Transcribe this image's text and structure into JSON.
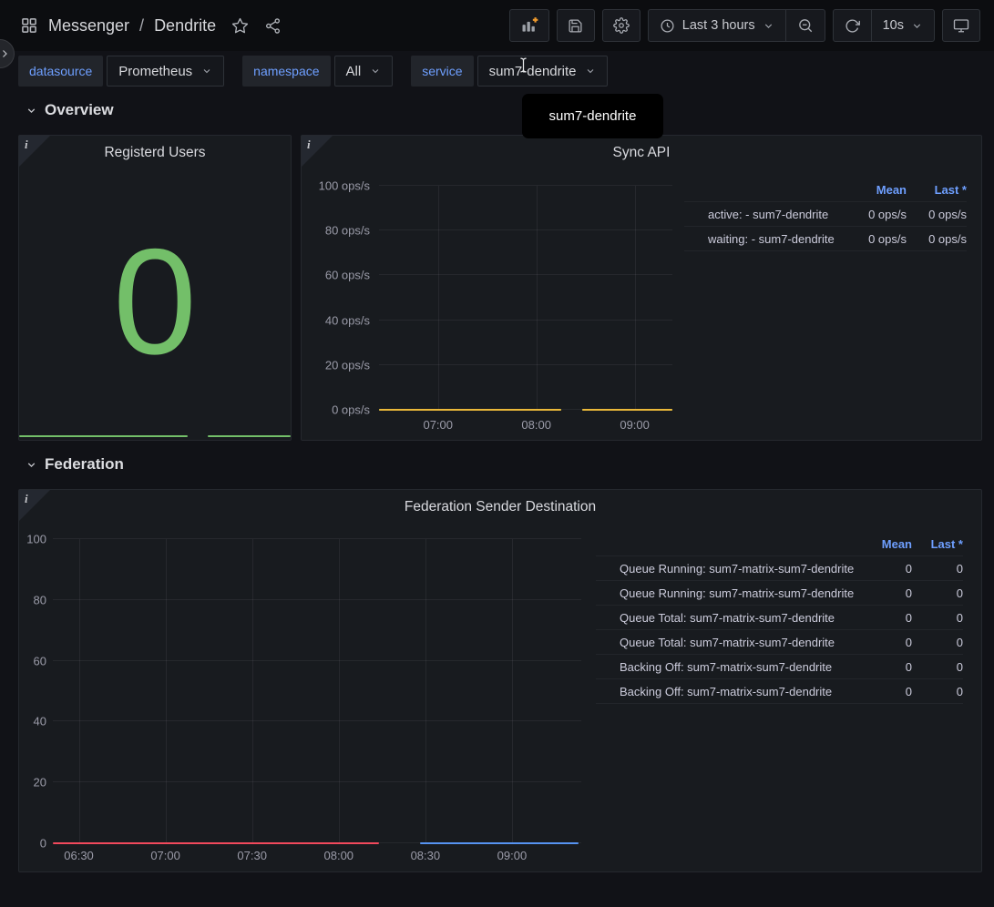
{
  "topbar": {
    "breadcrumb": {
      "root": "Messenger",
      "separator": "/",
      "current": "Dendrite"
    },
    "time_picker": {
      "label": "Last 3 hours"
    },
    "refresh": {
      "interval": "10s"
    }
  },
  "variables": [
    {
      "label": "datasource",
      "value": "Prometheus"
    },
    {
      "label": "namespace",
      "value": "All"
    },
    {
      "label": "service",
      "value": "sum7-dendrite"
    }
  ],
  "tooltip": {
    "text": "sum7-dendrite"
  },
  "sections": [
    {
      "title": "Overview"
    },
    {
      "title": "Federation"
    }
  ],
  "panels": {
    "stat": {
      "title": "Registerd Users",
      "value": "0",
      "color": "#73BF69",
      "sparkline": {
        "color": "#73BF69",
        "segments": [
          [
            0,
            0.62
          ],
          [
            0.695,
            1
          ]
        ]
      }
    }
  },
  "icons": {
    "topbar": [
      "apps-icon",
      "star-icon",
      "share-icon",
      "add-panel-icon",
      "save-icon",
      "gear-icon",
      "clock-icon",
      "chevron-down-icon",
      "zoom-out-icon",
      "refresh-icon",
      "monitor-icon"
    ],
    "misc": [
      "chevron-right-icon",
      "panel-info-icon",
      "text-cursor-icon"
    ]
  },
  "colors": {
    "page_bg": "#111217",
    "panel_bg": "#181b1f",
    "link_blue": "#6e9fff",
    "green": "#73BF69",
    "yellow": "#EAB839",
    "blue": "#5794F2",
    "orange": "#FF9830",
    "red": "#F2495C",
    "dark_blue": "#3274D9"
  },
  "chart_data": [
    {
      "id": "sync",
      "type": "line",
      "title": "Sync API",
      "unit": "ops/s",
      "grid": true,
      "legend_position": "right",
      "y_axis": {
        "min": 0,
        "max": 100,
        "ticks": [
          {
            "value": 0,
            "label": "0 ops/s"
          },
          {
            "value": 20,
            "label": "20 ops/s"
          },
          {
            "value": 40,
            "label": "40 ops/s"
          },
          {
            "value": 60,
            "label": "60 ops/s"
          },
          {
            "value": 80,
            "label": "80 ops/s"
          },
          {
            "value": 100,
            "label": "100 ops/s"
          }
        ]
      },
      "x_axis": {
        "start": "06:24",
        "end": "09:23",
        "ticks": [
          "07:00",
          "08:00",
          "09:00"
        ]
      },
      "legend": {
        "columns": [
          "Mean",
          "Last *"
        ]
      },
      "series": [
        {
          "name": "active: - sum7-dendrite",
          "color": "#73BF69",
          "mean": "0 ops/s",
          "last": "0 ops/s",
          "segments": [
            {
              "from": "06:24",
              "to": "08:15",
              "value": 0
            },
            {
              "from": "08:28",
              "to": "09:23",
              "value": 0
            }
          ]
        },
        {
          "name": "waiting: - sum7-dendrite",
          "color": "#EAB839",
          "mean": "0 ops/s",
          "last": "0 ops/s",
          "segments": [
            {
              "from": "06:24",
              "to": "08:15",
              "value": 0
            },
            {
              "from": "08:28",
              "to": "09:23",
              "value": 0
            }
          ]
        }
      ]
    },
    {
      "id": "federation",
      "type": "line",
      "title": "Federation Sender Destination",
      "unit": "",
      "grid": true,
      "legend_position": "right",
      "y_axis": {
        "min": 0,
        "max": 100,
        "ticks": [
          {
            "value": 0,
            "label": "0"
          },
          {
            "value": 20,
            "label": "20"
          },
          {
            "value": 40,
            "label": "40"
          },
          {
            "value": 60,
            "label": "60"
          },
          {
            "value": 80,
            "label": "80"
          },
          {
            "value": 100,
            "label": "100"
          }
        ]
      },
      "x_axis": {
        "start": "06:21",
        "end": "09:24",
        "ticks": [
          "06:30",
          "07:00",
          "07:30",
          "08:00",
          "08:30",
          "09:00"
        ]
      },
      "legend": {
        "columns": [
          "Mean",
          "Last *"
        ]
      },
      "series": [
        {
          "name": "Queue Running: sum7-matrix-sum7-dendrite",
          "color": "#73BF69",
          "mean": "0",
          "last": "0",
          "segments": []
        },
        {
          "name": "Queue Running: sum7-matrix-sum7-dendrite",
          "color": "#EAB839",
          "mean": "0",
          "last": "0",
          "segments": []
        },
        {
          "name": "Queue Total: sum7-matrix-sum7-dendrite",
          "color": "#5794F2",
          "mean": "0",
          "last": "0",
          "segments": [
            {
              "from": "08:28",
              "to": "09:23",
              "value": 0
            }
          ]
        },
        {
          "name": "Queue Total: sum7-matrix-sum7-dendrite",
          "color": "#FF9830",
          "mean": "0",
          "last": "0",
          "segments": []
        },
        {
          "name": "Backing Off: sum7-matrix-sum7-dendrite",
          "color": "#F2495C",
          "mean": "0",
          "last": "0",
          "segments": [
            {
              "from": "06:21",
              "to": "08:14",
              "value": 0
            }
          ]
        },
        {
          "name": "Backing Off: sum7-matrix-sum7-dendrite",
          "color": "#3274D9",
          "mean": "0",
          "last": "0",
          "segments": []
        }
      ]
    }
  ]
}
